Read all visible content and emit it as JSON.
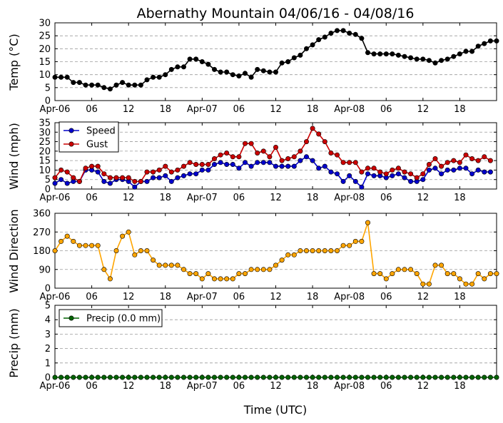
{
  "title": "Abernathy Mountain 04/06/16 - 04/08/16",
  "xlabel": "Time (UTC)",
  "x_tick_labels": [
    "Apr-06",
    "06",
    "12",
    "18",
    "Apr-07",
    "06",
    "12",
    "18",
    "Apr-08",
    "06",
    "12",
    "18"
  ],
  "colors": {
    "temp": "#000000",
    "speed": "#0000cc",
    "gust": "#cc0000",
    "direction": "#ffa500",
    "precip": "#006400"
  },
  "chart_data": [
    {
      "type": "line",
      "ylabel": "Temp (°C)",
      "ylim": [
        0,
        30
      ],
      "yticks": [
        0,
        5,
        10,
        15,
        20,
        25,
        30
      ],
      "x_hours_start": 0,
      "x_hours_step": 1,
      "x_unit": "hours since Apr-06 00 UTC",
      "grid": "horizontal-dashed",
      "series": [
        {
          "values": [
            9,
            9,
            9,
            7,
            7,
            6,
            6,
            6,
            5,
            4.5,
            6,
            7,
            6,
            6,
            6,
            8,
            9,
            9,
            10,
            12,
            13,
            13,
            16,
            16,
            15,
            14,
            12,
            11,
            11,
            10,
            9.5,
            10.5,
            9,
            12,
            11.5,
            11,
            11,
            14.5,
            15,
            16.5,
            17.5,
            20,
            21.5,
            23.5,
            24.5,
            26,
            27,
            27,
            26,
            25.5,
            24,
            18.5,
            18,
            18,
            18,
            18,
            17.5,
            17,
            16.5,
            16,
            16,
            15.5,
            14.5,
            15.5,
            16,
            17,
            18,
            19,
            19,
            21,
            22,
            23,
            23
          ]
        }
      ]
    },
    {
      "type": "line",
      "ylabel": "Wind (mph)",
      "ylim": [
        0,
        35
      ],
      "yticks": [
        0,
        5,
        10,
        15,
        20,
        25,
        30,
        35
      ],
      "grid": "horizontal-dashed",
      "legend": "top-left",
      "series": [
        {
          "name": "Speed",
          "values": [
            3,
            5,
            3,
            4,
            4,
            10,
            10,
            9,
            4,
            3,
            5,
            5,
            4,
            1,
            4,
            4,
            6,
            6,
            7,
            4,
            6,
            7,
            8,
            8,
            10,
            10,
            13,
            14,
            13,
            13,
            11,
            14,
            12,
            14,
            14,
            14,
            12,
            12,
            12,
            12,
            15,
            17,
            15,
            11,
            12,
            9,
            8,
            4,
            7,
            4,
            1,
            8,
            7,
            7,
            6,
            7,
            8,
            6,
            4,
            4,
            5,
            10,
            11,
            8,
            10,
            10,
            11,
            11,
            8,
            10,
            9,
            9
          ]
        },
        {
          "name": "Gust",
          "values": [
            6,
            10,
            9,
            6,
            4,
            11,
            12,
            12,
            8,
            6,
            6,
            6,
            6,
            4,
            4,
            9,
            9,
            10,
            12,
            9,
            10,
            12,
            14,
            13,
            13,
            13,
            16,
            18,
            19,
            17,
            17,
            24,
            24,
            19,
            20,
            17,
            22,
            15,
            16,
            17,
            20,
            25,
            32,
            29,
            25,
            19,
            18,
            14,
            14,
            14,
            9,
            11,
            11,
            9,
            8,
            10,
            11,
            9,
            8,
            6,
            8,
            13,
            16,
            12,
            14,
            15,
            14,
            18,
            16,
            15,
            17,
            15
          ]
        }
      ]
    },
    {
      "type": "line",
      "ylabel": "Wind Direction",
      "ylim": [
        0,
        360
      ],
      "yticks": [
        0,
        90,
        180,
        270,
        360
      ],
      "grid": "horizontal-dashed",
      "series": [
        {
          "values": [
            180,
            225,
            250,
            225,
            205,
            205,
            205,
            205,
            90,
            45,
            180,
            250,
            270,
            160,
            180,
            180,
            135,
            110,
            110,
            110,
            110,
            90,
            70,
            70,
            45,
            70,
            45,
            45,
            45,
            45,
            70,
            70,
            90,
            90,
            90,
            90,
            110,
            135,
            160,
            160,
            180,
            180,
            180,
            180,
            180,
            180,
            180,
            205,
            205,
            225,
            225,
            315,
            70,
            70,
            45,
            70,
            90,
            90,
            90,
            70,
            20,
            20,
            110,
            110,
            70,
            70,
            45,
            20,
            20,
            70,
            45,
            70,
            70
          ]
        }
      ]
    },
    {
      "type": "line",
      "ylabel": "Precip (mm)",
      "ylim": [
        0,
        5
      ],
      "yticks": [
        0,
        1,
        2,
        3,
        4,
        5
      ],
      "grid": "horizontal-dashed",
      "legend": "top-left",
      "series": [
        {
          "name": "Precip (0.0 mm)",
          "values": [
            0,
            0,
            0,
            0,
            0,
            0,
            0,
            0,
            0,
            0,
            0,
            0,
            0,
            0,
            0,
            0,
            0,
            0,
            0,
            0,
            0,
            0,
            0,
            0,
            0,
            0,
            0,
            0,
            0,
            0,
            0,
            0,
            0,
            0,
            0,
            0,
            0,
            0,
            0,
            0,
            0,
            0,
            0,
            0,
            0,
            0,
            0,
            0,
            0,
            0,
            0,
            0,
            0,
            0,
            0,
            0,
            0,
            0,
            0,
            0,
            0,
            0,
            0,
            0,
            0,
            0,
            0,
            0,
            0,
            0,
            0,
            0,
            0
          ]
        }
      ]
    }
  ]
}
